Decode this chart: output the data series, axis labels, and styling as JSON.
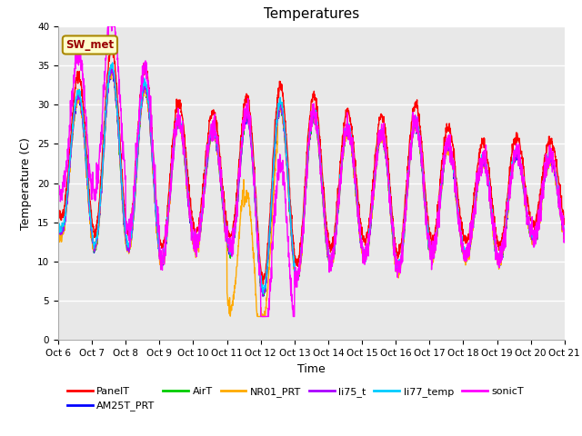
{
  "title": "Temperatures",
  "xlabel": "Time",
  "ylabel": "Temperature (C)",
  "ylim": [
    0,
    40
  ],
  "x_tick_labels": [
    "Oct 6",
    "Oct 7",
    "Oct 8",
    "Oct 9",
    "Oct 10",
    "Oct 11",
    "Oct 12",
    "Oct 13",
    "Oct 14",
    "Oct 15",
    "Oct 16",
    "Oct 17",
    "Oct 18",
    "Oct 19",
    "Oct 20",
    "Oct 21"
  ],
  "annotation_text": "SW_met",
  "annotation_bg": "#ffffcc",
  "annotation_border": "#aa8800",
  "annotation_text_color": "#990000",
  "series": {
    "PanelT": {
      "color": "#ff0000",
      "lw": 1.0
    },
    "AM25T_PRT": {
      "color": "#0000ff",
      "lw": 1.0
    },
    "AirT": {
      "color": "#00cc00",
      "lw": 1.0
    },
    "NR01_PRT": {
      "color": "#ffaa00",
      "lw": 1.0
    },
    "li75_t": {
      "color": "#aa00ff",
      "lw": 1.0
    },
    "li77_temp": {
      "color": "#00ccff",
      "lw": 1.0
    },
    "sonicT": {
      "color": "#ff00ff",
      "lw": 1.0
    }
  },
  "plot_bg_color": "#e8e8e8",
  "fig_bg_color": "#ffffff",
  "grid_color": "#ffffff",
  "title_fontsize": 11,
  "tick_fontsize": 7.5,
  "label_fontsize": 9
}
